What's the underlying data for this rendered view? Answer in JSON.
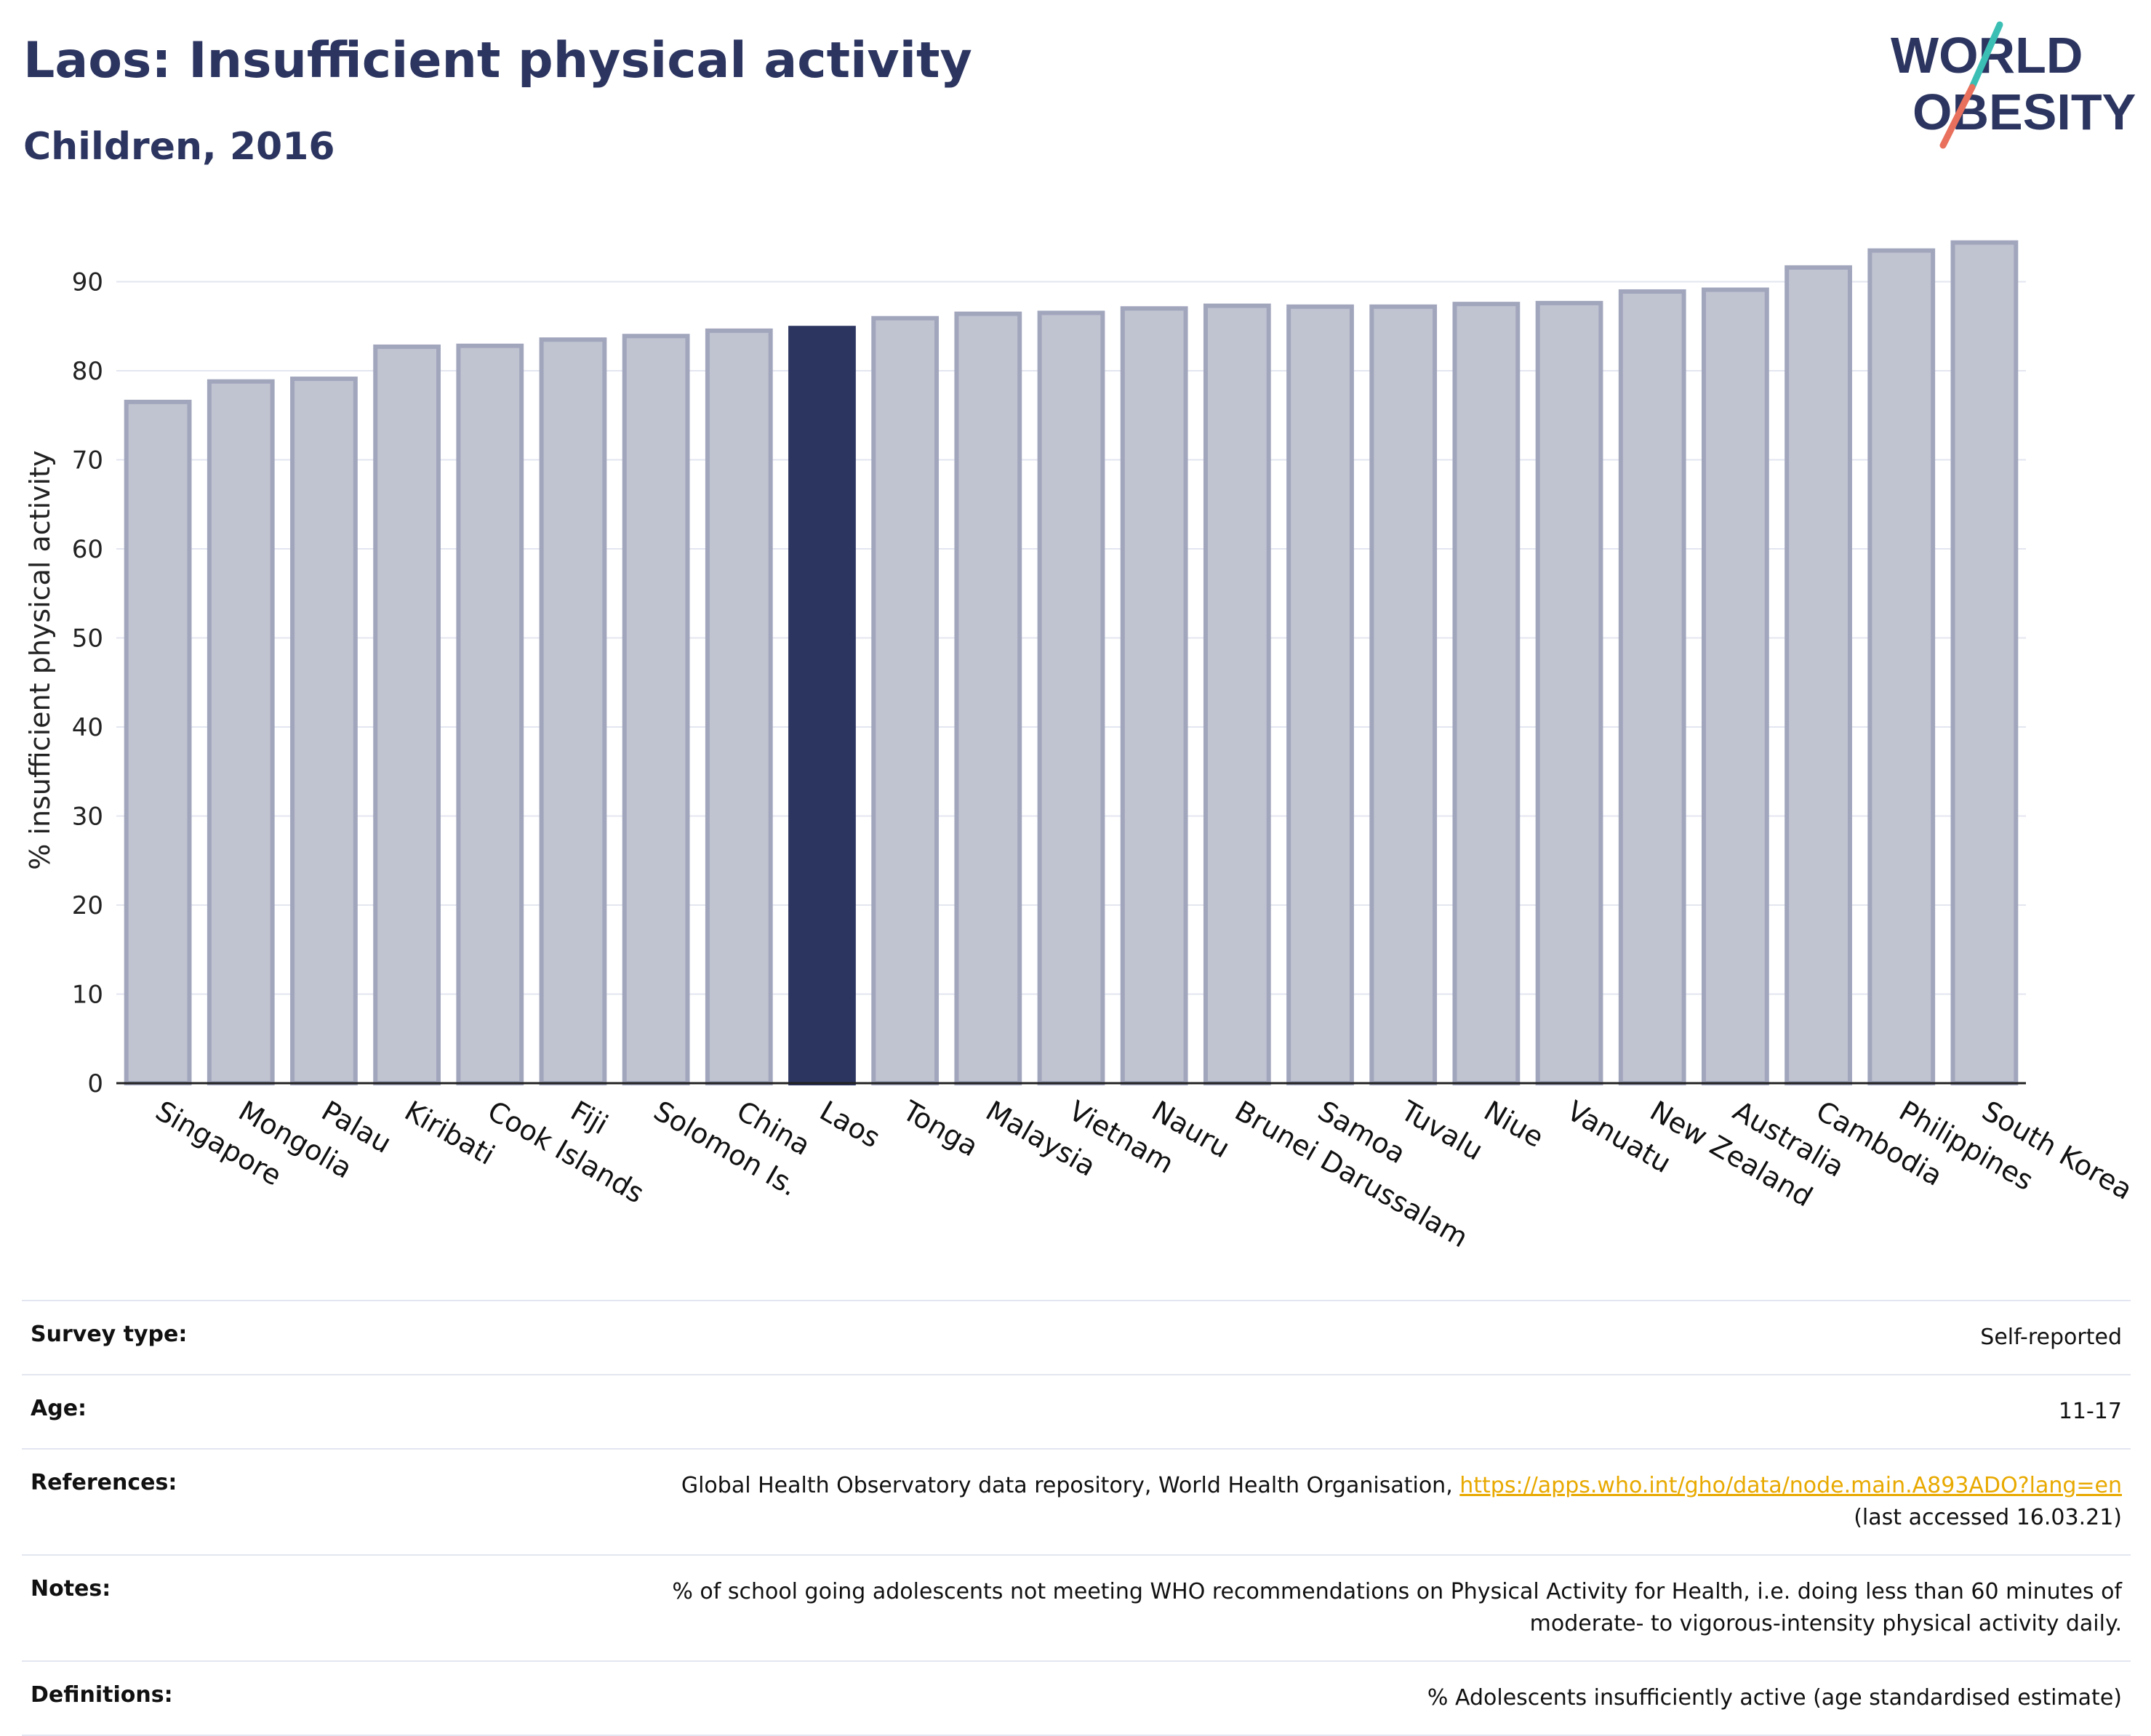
{
  "header": {
    "title": "Laos: Insufficient physical activity",
    "subtitle": "Children, 2016"
  },
  "logo": {
    "line1": "WORLD",
    "line2": "OBESITY"
  },
  "colors": {
    "highlight": "#2c3560",
    "bar_fill": "#c0c3d0",
    "bar_stroke": "#a2a6bd",
    "text": "#2c3560",
    "grid": "#e3e6f0"
  },
  "chart_data": {
    "type": "bar",
    "ylabel": "% insufficient physical activity",
    "ylim": [
      0,
      95
    ],
    "yticks": [
      0,
      10,
      20,
      30,
      40,
      50,
      60,
      70,
      80,
      90
    ],
    "highlight": "Laos",
    "grid": true,
    "categories": [
      "Singapore",
      "Mongolia",
      "Palau",
      "Kiribati",
      "Cook Islands",
      "Fiji",
      "Solomon Is.",
      "China",
      "Laos",
      "Tonga",
      "Malaysia",
      "Vietnam",
      "Nauru",
      "Brunei Darussalam",
      "Samoa",
      "Tuvalu",
      "Niue",
      "Vanuatu",
      "New Zealand",
      "Australia",
      "Cambodia",
      "Philippines",
      "South Korea"
    ],
    "values": [
      76.5,
      78.8,
      79.1,
      82.7,
      82.8,
      83.5,
      83.9,
      84.5,
      84.8,
      85.9,
      86.4,
      86.5,
      87.0,
      87.3,
      87.2,
      87.2,
      87.5,
      87.6,
      88.9,
      89.1,
      91.6,
      93.5,
      94.4
    ]
  },
  "meta": {
    "survey_type_label": "Survey type:",
    "survey_type_value": "Self-reported",
    "age_label": "Age:",
    "age_value": "11-17",
    "references_label": "References:",
    "references_text": "Global Health Observatory data repository, World Health Organisation, ",
    "references_link": "https://apps.who.int/gho/data/node.main.A893ADO?lang=en",
    "references_accessed": "(last accessed 16.03.21)",
    "notes_label": "Notes:",
    "notes_line1": "% of school going adolescents not meeting WHO recommendations on Physical Activity for Health, i.e. doing less than 60 minutes of",
    "notes_line2": "moderate- to vigorous-intensity physical activity daily.",
    "definitions_label": "Definitions:",
    "definitions_value": "% Adolescents insufficiently active (age standardised estimate)"
  }
}
